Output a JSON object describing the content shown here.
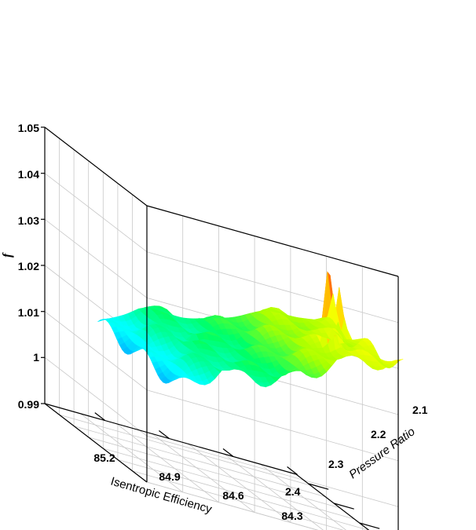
{
  "chart_data": {
    "type": "surface",
    "title": "",
    "xlabel": "Isentropic Efficiency",
    "ylabel": "Pressure Ratio",
    "zlabel": "f",
    "x_ticks": [
      "85.2",
      "84.9",
      "84.6",
      "84.3"
    ],
    "y_ticks": [
      "2.1",
      "2.2",
      "2.3",
      "2.4"
    ],
    "z_ticks": [
      "1.05",
      "1.04",
      "1.03",
      "1.02",
      "1.01",
      "1",
      "0.99"
    ],
    "xlim": [
      84.3,
      85.4
    ],
    "ylim": [
      2.0,
      2.4
    ],
    "zlim": [
      0.99,
      1.05
    ],
    "colormap": [
      "#0000cc",
      "#0088ff",
      "#00ffff",
      "#00ff66",
      "#aaff00",
      "#ffff00",
      "#ff8800",
      "#ff3333",
      "#ffaaaa"
    ],
    "grid": true,
    "surface_summary": {
      "baseline_f": 1.018,
      "high_efficiency_low_f": 1.006,
      "low_efficiency_high_f": 1.03,
      "max_spike_f": 1.048,
      "min_dip_f": 1.0
    }
  }
}
